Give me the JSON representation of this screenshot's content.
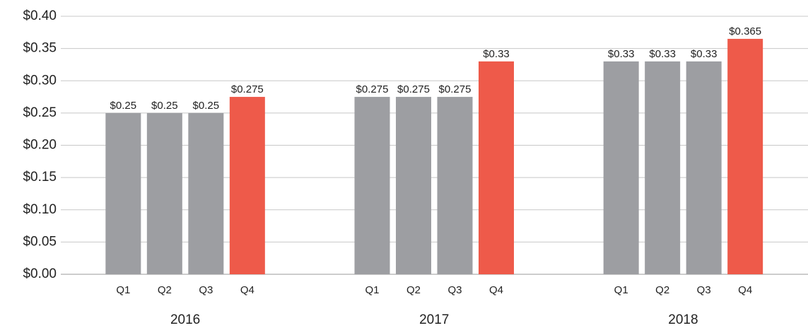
{
  "chart_data": {
    "type": "bar",
    "ylim": [
      0,
      0.4
    ],
    "yticks": [
      {
        "value": 0,
        "label": "$0.00"
      },
      {
        "value": 0.05,
        "label": "$0.05"
      },
      {
        "value": 0.1,
        "label": "$0.10"
      },
      {
        "value": 0.15,
        "label": "$0.15"
      },
      {
        "value": 0.2,
        "label": "$0.20"
      },
      {
        "value": 0.25,
        "label": "$0.25"
      },
      {
        "value": 0.3,
        "label": "$0.30"
      },
      {
        "value": 0.35,
        "label": "$0.35"
      },
      {
        "value": 0.4,
        "label": "$0.40"
      }
    ],
    "grid": true,
    "groups": [
      {
        "name": "2016",
        "categories": [
          "Q1",
          "Q2",
          "Q3",
          "Q4"
        ],
        "values": [
          0.25,
          0.25,
          0.25,
          0.275
        ],
        "value_labels": [
          "$0.25",
          "$0.25",
          "$0.25",
          "$0.275"
        ],
        "colors": [
          "#9d9ea2",
          "#9d9ea2",
          "#9d9ea2",
          "#ee5a4a"
        ]
      },
      {
        "name": "2017",
        "categories": [
          "Q1",
          "Q2",
          "Q3",
          "Q4"
        ],
        "values": [
          0.275,
          0.275,
          0.275,
          0.33
        ],
        "value_labels": [
          "$0.275",
          "$0.275",
          "$0.275",
          "$0.33"
        ],
        "colors": [
          "#9d9ea2",
          "#9d9ea2",
          "#9d9ea2",
          "#ee5a4a"
        ]
      },
      {
        "name": "2018",
        "categories": [
          "Q1",
          "Q2",
          "Q3",
          "Q4"
        ],
        "values": [
          0.33,
          0.33,
          0.33,
          0.365
        ],
        "value_labels": [
          "$0.33",
          "$0.33",
          "$0.33",
          "$0.365"
        ],
        "colors": [
          "#9d9ea2",
          "#9d9ea2",
          "#9d9ea2",
          "#ee5a4a"
        ]
      }
    ]
  }
}
